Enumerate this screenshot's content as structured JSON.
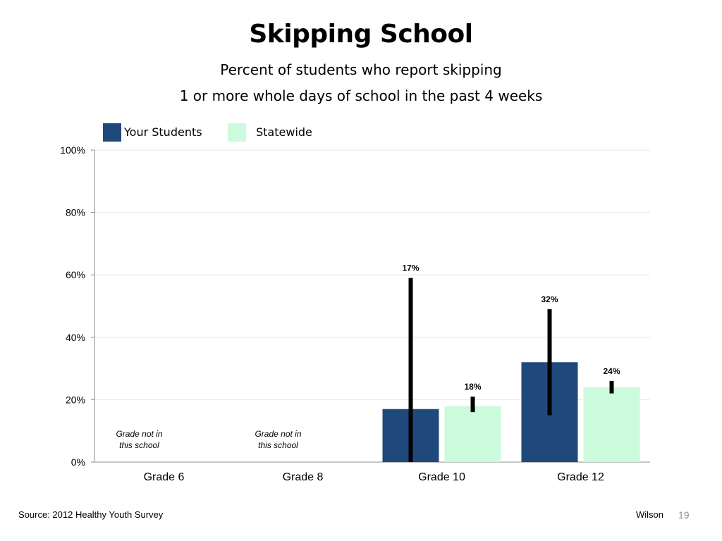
{
  "slide": {
    "title": "Skipping School",
    "subtitle_line1": "Percent of students who report skipping",
    "subtitle_line2": "1 or more whole days of school in the past 4 weeks",
    "source": "Source: 2012 Healthy Youth Survey",
    "author": "Wilson",
    "page_number": "19"
  },
  "legend": {
    "series1": "Your Students",
    "series2": "Statewide"
  },
  "colors": {
    "your_students": "#1f497d",
    "statewide": "#ccfadc",
    "error_bar": "#000000",
    "gridline": "#e6e6e6",
    "axis": "#8c8c8c"
  },
  "chart_data": {
    "type": "bar",
    "categories": [
      "Grade 6",
      "Grade 8",
      "Grade 10",
      "Grade 12"
    ],
    "series": [
      {
        "name": "Your Students",
        "values": [
          null,
          null,
          17,
          32
        ],
        "labels": [
          "",
          "",
          "17%",
          "32%"
        ],
        "error_low": [
          null,
          null,
          0,
          15
        ],
        "error_high": [
          null,
          null,
          59,
          49
        ]
      },
      {
        "name": "Statewide",
        "values": [
          null,
          null,
          18,
          24
        ],
        "labels": [
          "",
          "",
          "18%",
          "24%"
        ],
        "error_low": [
          null,
          null,
          16,
          22
        ],
        "error_high": [
          null,
          null,
          21,
          26
        ]
      }
    ],
    "annotations": [
      {
        "category": "Grade 6",
        "line1": "Grade not in",
        "line2": "this school"
      },
      {
        "category": "Grade 8",
        "line1": "Grade not in",
        "line2": "this school"
      }
    ],
    "y_ticks": [
      "0%",
      "20%",
      "40%",
      "60%",
      "80%",
      "100%"
    ],
    "ylim": [
      0,
      100
    ],
    "grid": true,
    "legend_position": "top-left"
  }
}
